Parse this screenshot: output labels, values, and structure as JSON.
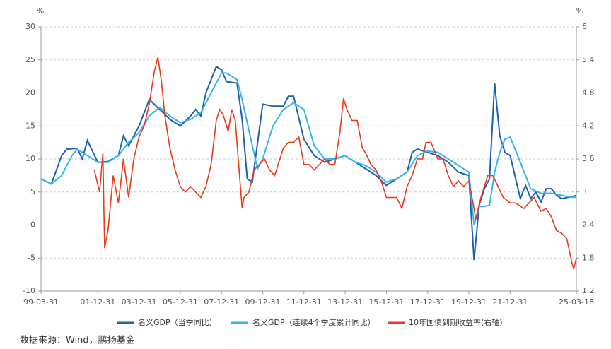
{
  "chart_data": {
    "type": "line",
    "y_unit": "%",
    "y2_unit": "%",
    "source": "数据来源：Wind，鹏扬基金",
    "xlim": [
      "1999-03-31",
      "2025-03-18"
    ],
    "xticks": [
      {
        "value": "1999-03-31",
        "label": "99-03-31"
      },
      {
        "value": "2001-12-31",
        "label": "01-12-31"
      },
      {
        "value": "2003-12-31",
        "label": "03-12-31"
      },
      {
        "value": "2005-12-31",
        "label": "05-12-31"
      },
      {
        "value": "2007-12-31",
        "label": "07-12-31"
      },
      {
        "value": "2009-12-31",
        "label": "09-12-31"
      },
      {
        "value": "2011-12-31",
        "label": "11-12-31"
      },
      {
        "value": "2013-12-31",
        "label": "13-12-31"
      },
      {
        "value": "2015-12-31",
        "label": "15-12-31"
      },
      {
        "value": "2017-12-31",
        "label": "17-12-31"
      },
      {
        "value": "2019-12-31",
        "label": "19-12-31"
      },
      {
        "value": "2021-12-31",
        "label": "21-12-31"
      },
      {
        "value": "2025-03-18",
        "label": "25-03-18"
      }
    ],
    "ylim": [
      -10,
      30
    ],
    "yticks": [
      -10,
      -5,
      0,
      5,
      10,
      15,
      20,
      25,
      30
    ],
    "y2lim": [
      1.2,
      6
    ],
    "y2ticks": [
      1.2,
      1.8,
      2.4,
      3,
      3.6,
      4.2,
      4.8,
      5.4,
      6
    ],
    "grid": true,
    "series": [
      {
        "name": "名义GDP（当季同比）",
        "color": "#1f5fb4",
        "x": [
          "1999-03-31",
          "1999-09-30",
          "2000-03-31",
          "2000-06-30",
          "2000-12-31",
          "2001-03-31",
          "2001-06-30",
          "2001-12-31",
          "2002-06-30",
          "2002-12-31",
          "2003-03-31",
          "2003-06-30",
          "2003-12-31",
          "2004-06-30",
          "2004-12-31",
          "2005-06-30",
          "2005-12-31",
          "2006-06-30",
          "2006-09-30",
          "2006-12-31",
          "2007-03-31",
          "2007-09-30",
          "2007-12-31",
          "2008-03-31",
          "2008-09-30",
          "2008-12-31",
          "2009-03-31",
          "2009-06-30",
          "2009-12-31",
          "2010-06-30",
          "2010-12-31",
          "2011-03-31",
          "2011-06-30",
          "2011-12-31",
          "2012-06-30",
          "2012-12-31",
          "2013-06-30",
          "2013-12-31",
          "2014-06-30",
          "2014-12-31",
          "2015-06-30",
          "2015-12-31",
          "2016-06-30",
          "2016-12-31",
          "2017-03-31",
          "2017-06-30",
          "2017-12-31",
          "2018-06-30",
          "2018-12-31",
          "2019-06-30",
          "2019-12-31",
          "2020-03-31",
          "2020-06-30",
          "2020-09-30",
          "2020-12-31",
          "2021-03-31",
          "2021-06-30",
          "2021-09-30",
          "2021-12-31",
          "2022-06-30",
          "2022-09-30",
          "2022-12-31",
          "2023-03-31",
          "2023-06-30",
          "2023-09-30",
          "2023-12-31",
          "2024-03-31",
          "2024-06-30",
          "2024-12-31",
          "2025-03-18"
        ],
        "values": [
          7,
          6.2,
          10.5,
          11.5,
          11.6,
          10,
          12.8,
          9.5,
          9.6,
          10.5,
          13.5,
          12,
          15,
          19,
          17.5,
          16,
          15,
          16.5,
          17.5,
          16.5,
          20,
          24,
          23.5,
          21.7,
          21.5,
          16,
          7,
          6.5,
          18.3,
          18,
          18,
          19.5,
          19.5,
          13,
          10.5,
          9.5,
          10,
          10.5,
          9.5,
          8.5,
          7.5,
          6,
          7,
          8,
          11,
          11.5,
          11,
          10.5,
          9.5,
          8,
          7.5,
          -5.3,
          3,
          5.5,
          7,
          21.5,
          13.5,
          11,
          10.5,
          4,
          6,
          4,
          5,
          3.5,
          5.5,
          5.5,
          4.5,
          4,
          4.3,
          4.5
        ]
      },
      {
        "name": "名义GDP（连续4个季度累计同比）",
        "color": "#35b6e6",
        "x": [
          "1999-03-31",
          "1999-09-30",
          "2000-03-31",
          "2000-09-30",
          "2000-12-31",
          "2001-06-30",
          "2001-12-31",
          "2002-06-30",
          "2002-12-31",
          "2003-06-30",
          "2003-12-31",
          "2004-06-30",
          "2004-12-31",
          "2005-06-30",
          "2005-12-31",
          "2006-06-30",
          "2006-12-31",
          "2007-06-30",
          "2007-12-31",
          "2008-03-31",
          "2008-09-30",
          "2008-12-31",
          "2009-06-30",
          "2009-09-30",
          "2009-12-31",
          "2010-06-30",
          "2010-12-31",
          "2011-06-30",
          "2011-12-31",
          "2012-06-30",
          "2012-12-31",
          "2013-06-30",
          "2013-12-31",
          "2014-06-30",
          "2014-12-31",
          "2015-06-30",
          "2015-12-31",
          "2016-06-30",
          "2016-12-31",
          "2017-06-30",
          "2017-12-31",
          "2018-06-30",
          "2018-12-31",
          "2019-06-30",
          "2019-12-31",
          "2020-03-31",
          "2020-06-30",
          "2020-09-30",
          "2020-12-31",
          "2021-03-31",
          "2021-06-30",
          "2021-09-30",
          "2021-12-31",
          "2022-06-30",
          "2022-12-31",
          "2023-06-30",
          "2023-12-31",
          "2024-06-30",
          "2024-12-31",
          "2025-03-18"
        ],
        "values": [
          7,
          6.2,
          7.5,
          10.5,
          11.5,
          10.5,
          9.5,
          9.5,
          10.5,
          12.5,
          14,
          16.5,
          17.8,
          16.5,
          15.5,
          16,
          17,
          20,
          23,
          23,
          22,
          19,
          12,
          8.5,
          10,
          15,
          17.5,
          18.5,
          17.5,
          12,
          10,
          10,
          10.5,
          9.5,
          9,
          8,
          6.5,
          7,
          8,
          10.5,
          11.2,
          11,
          10,
          9,
          8,
          0,
          2.8,
          2.8,
          3,
          8,
          11,
          13,
          13.3,
          9.5,
          5.5,
          4.8,
          4.8,
          4.5,
          4.2,
          4.2
        ]
      },
      {
        "name": "10年国债到期收益率(右轴)",
        "color": "#e8391a",
        "axis": "y2",
        "x": [
          "2001-10-31",
          "2002-01-31",
          "2002-03-31",
          "2002-04-30",
          "2002-06-30",
          "2002-09-30",
          "2002-12-31",
          "2003-03-31",
          "2003-06-30",
          "2003-09-30",
          "2003-12-31",
          "2004-03-31",
          "2004-06-30",
          "2004-09-30",
          "2004-11-30",
          "2005-01-31",
          "2005-03-31",
          "2005-06-30",
          "2005-09-30",
          "2005-12-31",
          "2006-03-31",
          "2006-06-30",
          "2006-09-30",
          "2006-12-31",
          "2007-03-31",
          "2007-06-30",
          "2007-09-30",
          "2007-11-30",
          "2008-01-31",
          "2008-04-30",
          "2008-06-30",
          "2008-08-31",
          "2008-10-31",
          "2008-12-31",
          "2009-01-31",
          "2009-04-30",
          "2009-07-31",
          "2009-10-31",
          "2010-01-31",
          "2010-04-30",
          "2010-07-31",
          "2010-10-31",
          "2010-12-31",
          "2011-03-31",
          "2011-06-30",
          "2011-09-30",
          "2011-12-31",
          "2012-03-31",
          "2012-06-30",
          "2012-09-30",
          "2012-12-31",
          "2013-03-31",
          "2013-06-30",
          "2013-09-30",
          "2013-11-30",
          "2014-01-31",
          "2014-04-30",
          "2014-07-31",
          "2014-10-31",
          "2014-12-31",
          "2015-03-31",
          "2015-06-30",
          "2015-09-30",
          "2015-12-31",
          "2016-03-31",
          "2016-06-30",
          "2016-09-30",
          "2016-12-31",
          "2017-03-31",
          "2017-06-30",
          "2017-09-30",
          "2017-11-30",
          "2018-02-28",
          "2018-06-30",
          "2018-09-30",
          "2018-12-31",
          "2019-03-31",
          "2019-06-30",
          "2019-09-30",
          "2019-12-31",
          "2020-03-31",
          "2020-04-30",
          "2020-07-31",
          "2020-11-30",
          "2021-02-28",
          "2021-05-31",
          "2021-08-31",
          "2021-12-31",
          "2022-03-31",
          "2022-08-31",
          "2022-11-30",
          "2023-02-28",
          "2023-06-30",
          "2023-09-30",
          "2023-12-31",
          "2024-03-31",
          "2024-06-30",
          "2024-09-30",
          "2024-12-31",
          "2025-01-31",
          "2025-03-18"
        ],
        "values": [
          3.4,
          3.0,
          3.7,
          1.98,
          2.3,
          3.3,
          2.8,
          3.6,
          2.9,
          3.6,
          4.0,
          4.2,
          4.6,
          5.2,
          5.45,
          5.0,
          4.4,
          3.8,
          3.4,
          3.1,
          3.0,
          3.1,
          3.0,
          2.9,
          3.1,
          3.5,
          4.3,
          4.5,
          4.4,
          4.1,
          4.5,
          4.3,
          3.5,
          2.7,
          2.9,
          3.0,
          3.4,
          3.5,
          3.6,
          3.4,
          3.3,
          3.6,
          3.8,
          3.9,
          3.9,
          4.0,
          3.5,
          3.5,
          3.4,
          3.5,
          3.6,
          3.5,
          3.5,
          4.1,
          4.7,
          4.5,
          4.3,
          4.3,
          3.8,
          3.7,
          3.5,
          3.4,
          3.2,
          2.9,
          2.9,
          2.9,
          2.7,
          3.1,
          3.3,
          3.6,
          3.6,
          3.9,
          3.9,
          3.6,
          3.6,
          3.3,
          3.1,
          3.2,
          3.1,
          3.2,
          2.7,
          2.5,
          2.9,
          3.3,
          3.3,
          3.1,
          2.9,
          2.8,
          2.8,
          2.7,
          2.8,
          2.9,
          2.65,
          2.7,
          2.55,
          2.3,
          2.25,
          2.15,
          1.7,
          1.6,
          1.8
        ]
      }
    ]
  }
}
